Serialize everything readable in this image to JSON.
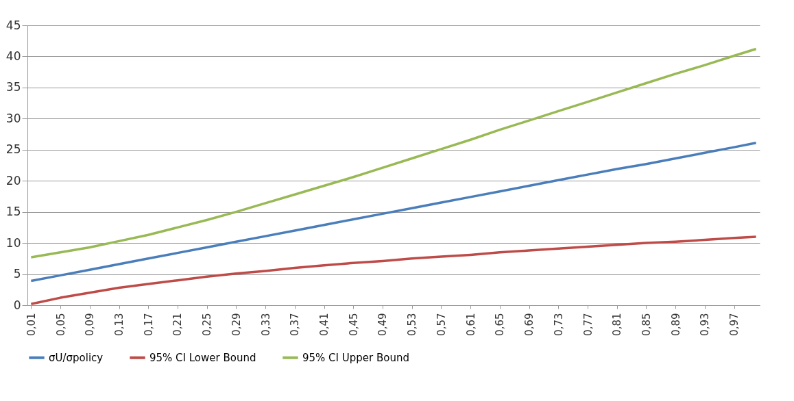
{
  "chart_data": {
    "type": "line",
    "x": [
      0.01,
      0.05,
      0.09,
      0.13,
      0.17,
      0.21,
      0.25,
      0.29,
      0.33,
      0.37,
      0.41,
      0.45,
      0.49,
      0.53,
      0.57,
      0.61,
      0.65,
      0.69,
      0.73,
      0.77,
      0.81,
      0.85,
      0.89,
      0.93,
      0.97,
      1.0
    ],
    "series": [
      {
        "name": "σU/σpolicy",
        "color": "#4a7ebb",
        "values": [
          3.9,
          4.8,
          5.7,
          6.6,
          7.5,
          8.4,
          9.3,
          10.2,
          11.1,
          12.0,
          12.9,
          13.8,
          14.7,
          15.6,
          16.5,
          17.4,
          18.3,
          19.2,
          20.1,
          21.0,
          21.9,
          22.7,
          23.6,
          24.5,
          25.4,
          26.1
        ]
      },
      {
        "name": "95% CI Lower Bound",
        "color": "#be4b48",
        "values": [
          0.2,
          1.2,
          2.0,
          2.8,
          3.4,
          4.0,
          4.6,
          5.1,
          5.5,
          6.0,
          6.4,
          6.8,
          7.1,
          7.5,
          7.8,
          8.1,
          8.5,
          8.8,
          9.1,
          9.4,
          9.7,
          10.0,
          10.2,
          10.5,
          10.8,
          11.0
        ]
      },
      {
        "name": "95% CI Upper Bound",
        "color": "#98b954",
        "values": [
          7.7,
          8.5,
          9.3,
          10.3,
          11.3,
          12.5,
          13.7,
          15.0,
          16.4,
          17.8,
          19.2,
          20.6,
          22.1,
          23.6,
          25.1,
          26.6,
          28.2,
          29.7,
          31.2,
          32.7,
          34.2,
          35.7,
          37.2,
          38.6,
          40.1,
          41.2
        ]
      }
    ],
    "xlim": [
      0.005,
      1.005
    ],
    "xticks": [
      {
        "value": 0.01,
        "label": "0,01"
      },
      {
        "value": 0.05,
        "label": "0,05"
      },
      {
        "value": 0.09,
        "label": "0,09"
      },
      {
        "value": 0.13,
        "label": "0,13"
      },
      {
        "value": 0.17,
        "label": "0,17"
      },
      {
        "value": 0.21,
        "label": "0,21"
      },
      {
        "value": 0.25,
        "label": "0,25"
      },
      {
        "value": 0.29,
        "label": "0,29"
      },
      {
        "value": 0.33,
        "label": "0,33"
      },
      {
        "value": 0.37,
        "label": "0,37"
      },
      {
        "value": 0.41,
        "label": "0,41"
      },
      {
        "value": 0.45,
        "label": "0,45"
      },
      {
        "value": 0.49,
        "label": "0,49"
      },
      {
        "value": 0.53,
        "label": "0,53"
      },
      {
        "value": 0.57,
        "label": "0,57"
      },
      {
        "value": 0.61,
        "label": "0,61"
      },
      {
        "value": 0.65,
        "label": "0,65"
      },
      {
        "value": 0.69,
        "label": "0,69"
      },
      {
        "value": 0.73,
        "label": "0,73"
      },
      {
        "value": 0.77,
        "label": "0,77"
      },
      {
        "value": 0.81,
        "label": "0,81"
      },
      {
        "value": 0.85,
        "label": "0,85"
      },
      {
        "value": 0.89,
        "label": "0,89"
      },
      {
        "value": 0.93,
        "label": "0,93"
      },
      {
        "value": 0.97,
        "label": "0,97"
      }
    ],
    "ylim": [
      0,
      45
    ],
    "yticks": [
      0,
      5,
      10,
      15,
      20,
      25,
      30,
      35,
      40,
      45
    ],
    "grid": "y",
    "legend": "bottom",
    "marker": "none",
    "line_style": "solid"
  }
}
